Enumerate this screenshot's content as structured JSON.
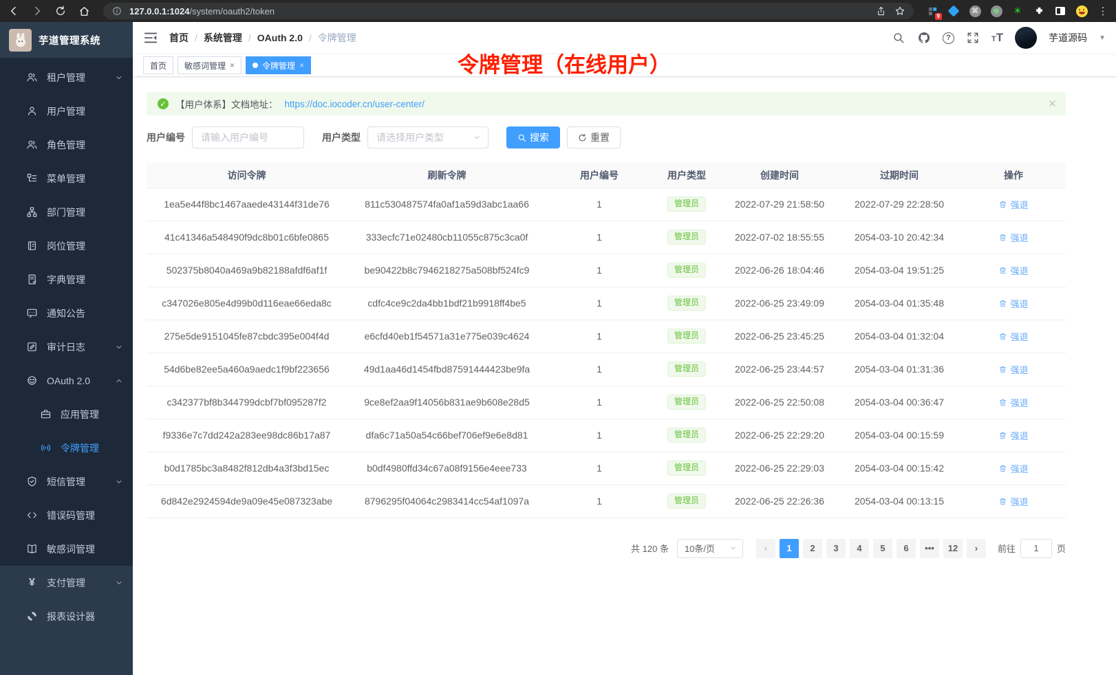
{
  "browser": {
    "url_host": "127.0.0.1:1024",
    "url_path": "/system/oauth2/token",
    "extension_badge": "9"
  },
  "sidebar": {
    "title": "芋道管理系统",
    "items": [
      {
        "label": "租户管理",
        "icon": "users-icon",
        "arrow": "down",
        "indent": false,
        "active": false,
        "section": "top"
      },
      {
        "label": "用户管理",
        "icon": "user-icon",
        "arrow": "",
        "indent": false,
        "active": false,
        "section": "top"
      },
      {
        "label": "角色管理",
        "icon": "role-icon",
        "arrow": "",
        "indent": false,
        "active": false,
        "section": "top"
      },
      {
        "label": "菜单管理",
        "icon": "menu-tree-icon",
        "arrow": "",
        "indent": false,
        "active": false,
        "section": "top"
      },
      {
        "label": "部门管理",
        "icon": "org-icon",
        "arrow": "",
        "indent": false,
        "active": false,
        "section": "top"
      },
      {
        "label": "岗位管理",
        "icon": "post-icon",
        "arrow": "",
        "indent": false,
        "active": false,
        "section": "top"
      },
      {
        "label": "字典管理",
        "icon": "dict-icon",
        "arrow": "",
        "indent": false,
        "active": false,
        "section": "top"
      },
      {
        "label": "通知公告",
        "icon": "notice-icon",
        "arrow": "",
        "indent": false,
        "active": false,
        "section": "top"
      },
      {
        "label": "审计日志",
        "icon": "log-icon",
        "arrow": "down",
        "indent": false,
        "active": false,
        "section": "top"
      },
      {
        "label": "OAuth 2.0",
        "icon": "oauth-icon",
        "arrow": "up",
        "indent": false,
        "active": false,
        "section": "top"
      },
      {
        "label": "应用管理",
        "icon": "app-icon",
        "arrow": "",
        "indent": true,
        "active": false,
        "section": "top"
      },
      {
        "label": "令牌管理",
        "icon": "token-icon",
        "arrow": "",
        "indent": true,
        "active": true,
        "section": "top"
      },
      {
        "label": "短信管理",
        "icon": "shield-icon",
        "arrow": "down",
        "indent": false,
        "active": false,
        "section": "top"
      },
      {
        "label": "错误码管理",
        "icon": "code-icon",
        "arrow": "",
        "indent": false,
        "active": false,
        "section": "top"
      },
      {
        "label": "敏感词管理",
        "icon": "book-icon",
        "arrow": "",
        "indent": false,
        "active": false,
        "section": "top"
      },
      {
        "label": "支付管理",
        "icon": "yen-icon",
        "arrow": "down",
        "indent": false,
        "active": false,
        "section": "bottom"
      },
      {
        "label": "报表设计器",
        "icon": "report-icon",
        "arrow": "",
        "indent": false,
        "active": false,
        "section": "bottom"
      }
    ]
  },
  "header": {
    "breadcrumb": [
      {
        "label": "首页",
        "muted": false
      },
      {
        "label": "系统管理",
        "muted": false
      },
      {
        "label": "OAuth 2.0",
        "muted": false
      },
      {
        "label": "令牌管理",
        "muted": true
      }
    ],
    "username": "芋道源码"
  },
  "tabs": [
    {
      "label": "首页",
      "closable": false,
      "active": false
    },
    {
      "label": "敏感词管理",
      "closable": true,
      "active": false
    },
    {
      "label": "令牌管理",
      "closable": true,
      "active": true
    }
  ],
  "annotation": "令牌管理（在线用户）",
  "alert": {
    "prefix": "【用户体系】文档地址：",
    "link": "https://doc.iocoder.cn/user-center/"
  },
  "filters": {
    "user_id_label": "用户编号",
    "user_id_placeholder": "请输入用户编号",
    "user_type_label": "用户类型",
    "user_type_placeholder": "请选择用户类型",
    "search_label": "搜索",
    "reset_label": "重置"
  },
  "table": {
    "headers": [
      "访问令牌",
      "刷新令牌",
      "用户编号",
      "用户类型",
      "创建时间",
      "过期时间",
      "操作"
    ],
    "rows": [
      {
        "access_token": "1ea5e44f8bc1467aaede43144f31de76",
        "refresh_token": "811c530487574fa0af1a59d3abc1aa66",
        "user_id": "1",
        "user_type": "管理员",
        "create_time": "2022-07-29 21:58:50",
        "expire_time": "2022-07-29 22:28:50",
        "action": "强退"
      },
      {
        "access_token": "41c41346a548490f9dc8b01c6bfe0865",
        "refresh_token": "333ecfc71e02480cb11055c875c3ca0f",
        "user_id": "1",
        "user_type": "管理员",
        "create_time": "2022-07-02 18:55:55",
        "expire_time": "2054-03-10 20:42:34",
        "action": "强退"
      },
      {
        "access_token": "502375b8040a469a9b82188afdf6af1f",
        "refresh_token": "be90422b8c7946218275a508bf524fc9",
        "user_id": "1",
        "user_type": "管理员",
        "create_time": "2022-06-26 18:04:46",
        "expire_time": "2054-03-04 19:51:25",
        "action": "强退"
      },
      {
        "access_token": "c347026e805e4d99b0d116eae66eda8c",
        "refresh_token": "cdfc4ce9c2da4bb1bdf21b9918ff4be5",
        "user_id": "1",
        "user_type": "管理员",
        "create_time": "2022-06-25 23:49:09",
        "expire_time": "2054-03-04 01:35:48",
        "action": "强退"
      },
      {
        "access_token": "275e5de9151045fe87cbdc395e004f4d",
        "refresh_token": "e6cfd40eb1f54571a31e775e039c4624",
        "user_id": "1",
        "user_type": "管理员",
        "create_time": "2022-06-25 23:45:25",
        "expire_time": "2054-03-04 01:32:04",
        "action": "强退"
      },
      {
        "access_token": "54d6be82ee5a460a9aedc1f9bf223656",
        "refresh_token": "49d1aa46d1454fbd87591444423be9fa",
        "user_id": "1",
        "user_type": "管理员",
        "create_time": "2022-06-25 23:44:57",
        "expire_time": "2054-03-04 01:31:36",
        "action": "强退"
      },
      {
        "access_token": "c342377bf8b344799dcbf7bf095287f2",
        "refresh_token": "9ce8ef2aa9f14056b831ae9b608e28d5",
        "user_id": "1",
        "user_type": "管理员",
        "create_time": "2022-06-25 22:50:08",
        "expire_time": "2054-03-04 00:36:47",
        "action": "强退"
      },
      {
        "access_token": "f9336e7c7dd242a283ee98dc86b17a87",
        "refresh_token": "dfa6c71a50a54c66bef706ef9e6e8d81",
        "user_id": "1",
        "user_type": "管理员",
        "create_time": "2022-06-25 22:29:20",
        "expire_time": "2054-03-04 00:15:59",
        "action": "强退"
      },
      {
        "access_token": "b0d1785bc3a8482f812db4a3f3bd15ec",
        "refresh_token": "b0df4980ffd34c67a08f9156e4eee733",
        "user_id": "1",
        "user_type": "管理员",
        "create_time": "2022-06-25 22:29:03",
        "expire_time": "2054-03-04 00:15:42",
        "action": "强退"
      },
      {
        "access_token": "6d842e2924594de9a09e45e087323abe",
        "refresh_token": "8796295f04064c2983414cc54af1097a",
        "user_id": "1",
        "user_type": "管理员",
        "create_time": "2022-06-25 22:26:36",
        "expire_time": "2054-03-04 00:13:15",
        "action": "强退"
      }
    ]
  },
  "pagination": {
    "total": "共 120 条",
    "page_size": "10条/页",
    "pages": [
      "1",
      "2",
      "3",
      "4",
      "5",
      "6",
      "•••",
      "12"
    ],
    "active_page": "1",
    "prev": "‹",
    "next": "›",
    "goto_label": "前往",
    "goto_value": "1",
    "goto_unit": "页"
  },
  "colors": {
    "accent": "#409eff",
    "success": "#67c23a",
    "annotation_red": "#fd1f00",
    "sidebar_bg": "#1d2939"
  }
}
